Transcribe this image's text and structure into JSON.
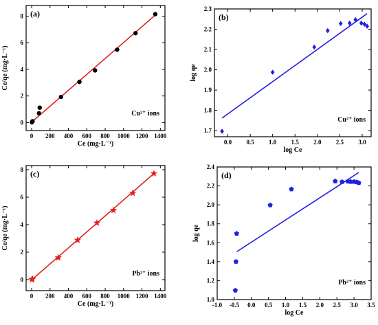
{
  "chart_data": [
    {
      "id": "a",
      "type": "scatter",
      "tag": "(a)",
      "xlabel": "Ce (mg·L⁻¹)",
      "ylabel": "Ce/qe (mg·L⁻¹)",
      "xlim": [
        -60,
        1450
      ],
      "ylim": [
        -0.6,
        8.8
      ],
      "xticks": [
        0,
        200,
        400,
        600,
        800,
        1000,
        1200,
        1400
      ],
      "yticks": [
        0,
        2,
        4,
        6,
        8
      ],
      "ions_label": "Cu²⁺ ions",
      "ions_pos": "bottom-right",
      "point_color": "#000000",
      "marker": "circle",
      "line_color": "#e02020",
      "points": [
        [
          3,
          0.02
        ],
        [
          10,
          0.1
        ],
        [
          80,
          0.7
        ],
        [
          88,
          1.12
        ],
        [
          320,
          1.93
        ],
        [
          520,
          3.06
        ],
        [
          690,
          3.92
        ],
        [
          930,
          5.48
        ],
        [
          1130,
          6.72
        ],
        [
          1345,
          8.15
        ]
      ],
      "fit": [
        [
          3,
          0.05
        ],
        [
          1345,
          8.08
        ]
      ]
    },
    {
      "id": "b",
      "type": "scatter",
      "tag": "(b)",
      "xlabel": "log Ce",
      "ylabel": "log qe",
      "xlim": [
        -0.3,
        3.2
      ],
      "ylim": [
        1.67,
        2.3
      ],
      "xticks": [
        0.0,
        0.5,
        1.0,
        1.5,
        2.0,
        2.5,
        3.0
      ],
      "yticks": [
        1.7,
        1.8,
        1.9,
        2.0,
        2.1,
        2.2,
        2.3
      ],
      "ions_label": "Cu²⁺ ions",
      "ions_pos": "bottom-right",
      "point_color": "#2020e0",
      "marker": "diamond",
      "line_color": "#2020e0",
      "points": [
        [
          -0.13,
          1.697
        ],
        [
          1.0,
          1.988
        ],
        [
          1.93,
          2.112
        ],
        [
          2.23,
          2.193
        ],
        [
          2.52,
          2.228
        ],
        [
          2.72,
          2.23
        ],
        [
          2.85,
          2.247
        ],
        [
          2.98,
          2.23
        ],
        [
          3.05,
          2.225
        ],
        [
          3.11,
          2.215
        ]
      ],
      "fit": [
        [
          -0.13,
          1.762
        ],
        [
          3.11,
          2.277
        ]
      ]
    },
    {
      "id": "c",
      "type": "scatter",
      "tag": "(c)",
      "xlabel": "Ce (mg·L⁻¹)",
      "ylabel": "Ce/qe (mg·L⁻¹)",
      "xlim": [
        -60,
        1450
      ],
      "ylim": [
        -0.8,
        8.3
      ],
      "xticks": [
        0,
        200,
        400,
        600,
        800,
        1000,
        1200,
        1400
      ],
      "yticks": [
        0,
        2,
        4,
        6,
        8
      ],
      "ions_label": "Pb²⁺ ions",
      "ions_pos": "bottom-right",
      "point_color": "#e02020",
      "marker": "star",
      "line_color": "#e02020",
      "points": [
        [
          3,
          0.01
        ],
        [
          8,
          0.05
        ],
        [
          290,
          1.6
        ],
        [
          500,
          2.88
        ],
        [
          710,
          4.13
        ],
        [
          890,
          5.05
        ],
        [
          1100,
          6.3
        ],
        [
          1330,
          7.72
        ]
      ],
      "fit": [
        [
          3,
          0.0
        ],
        [
          1330,
          7.72
        ]
      ]
    },
    {
      "id": "d",
      "type": "scatter",
      "tag": "(d)",
      "xlabel": "log Ce",
      "ylabel": "log qe",
      "xlim": [
        -1.0,
        3.5
      ],
      "ylim": [
        1.0,
        2.4
      ],
      "xticks": [
        -1.0,
        -0.5,
        0.0,
        0.5,
        1.0,
        1.5,
        2.0,
        2.5,
        3.0,
        3.5
      ],
      "yticks": [
        1.0,
        1.2,
        1.4,
        1.6,
        1.8,
        2.0,
        2.2,
        2.4
      ],
      "ions_label": "Pb²⁺ ions",
      "ions_pos": "bottom-right",
      "point_color": "#2020e0",
      "marker": "pentagon",
      "line_color": "#2020e0",
      "points": [
        [
          -0.47,
          1.097
        ],
        [
          -0.45,
          1.4
        ],
        [
          -0.43,
          1.697
        ],
        [
          0.55,
          1.997
        ],
        [
          1.17,
          2.166
        ],
        [
          2.45,
          2.25
        ],
        [
          2.65,
          2.243
        ],
        [
          2.82,
          2.248
        ],
        [
          2.9,
          2.245
        ],
        [
          3.0,
          2.245
        ],
        [
          3.08,
          2.24
        ],
        [
          3.14,
          2.232
        ]
      ],
      "fit": [
        [
          -0.43,
          1.505
        ],
        [
          3.14,
          2.342
        ]
      ]
    }
  ]
}
